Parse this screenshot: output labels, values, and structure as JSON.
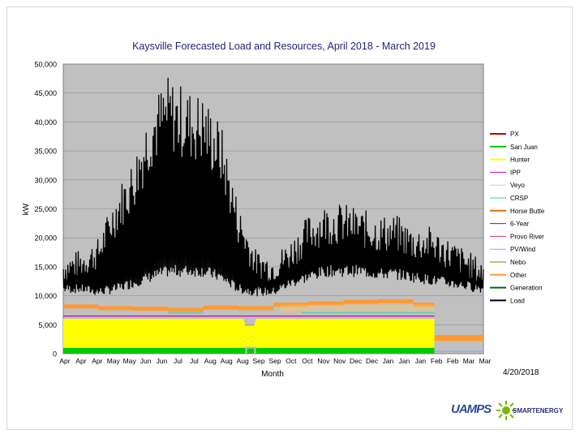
{
  "chart_data": {
    "type": "area",
    "title": "Kaysville Forecasted Load and Resources, April 2018 - March 2019",
    "ylabel": "kW",
    "xlabel": "Month",
    "ylim": [
      0,
      50000
    ],
    "yticks": [
      "0",
      "5,000",
      "10,000",
      "15,000",
      "20,000",
      "25,000",
      "30,000",
      "35,000",
      "40,000",
      "45,000",
      "50,000"
    ],
    "xticks": [
      "Apr",
      "Apr",
      "Apr",
      "May",
      "May",
      "Jun",
      "Jun",
      "Jul",
      "Jul",
      "Aug",
      "Aug",
      "Aug",
      "Sep",
      "Sep",
      "Oct",
      "Oct",
      "Nov",
      "Nov",
      "Dec",
      "Dec",
      "Jan",
      "Jan",
      "Jan",
      "Feb",
      "Feb",
      "Mar",
      "Mar"
    ],
    "grid": true,
    "legend_position": "right",
    "series": [
      {
        "name": "PX",
        "color": "#c00000"
      },
      {
        "name": "San Juan",
        "color": "#00cc00"
      },
      {
        "name": "Hunter",
        "color": "#ffff00"
      },
      {
        "name": "IPP",
        "color": "#cc00cc"
      },
      {
        "name": "Veyo",
        "color": "#cccccc"
      },
      {
        "name": "CRSP",
        "color": "#33cccc"
      },
      {
        "name": "Horse Butte",
        "color": "#e07000"
      },
      {
        "name": "6-Year",
        "color": "#333399"
      },
      {
        "name": "Provo River",
        "color": "#cc3366"
      },
      {
        "name": "PV/Wind",
        "color": "#9999ff"
      },
      {
        "name": "Nebo",
        "color": "#808000"
      },
      {
        "name": "Other",
        "color": "#ff9933"
      },
      {
        "name": "Generation",
        "color": "#006600"
      },
      {
        "name": "Load",
        "color": "#000000"
      }
    ],
    "stack_x_months": [
      0,
      5.2,
      5.4,
      6.2,
      12
    ],
    "san_juan": [
      1000,
      1000,
      600,
      1000,
      1000
    ],
    "hunter_top": [
      6000,
      6000,
      4800,
      6000,
      6000
    ],
    "hunter_x_end": 10.6,
    "other_band_top_x": [
      0,
      1,
      2,
      3,
      4,
      5,
      6,
      7,
      8,
      9,
      10,
      11,
      12
    ],
    "other_band_top": [
      8500,
      8200,
      8100,
      7900,
      8300,
      8200,
      8800,
      9000,
      9300,
      9400,
      8800,
      3200,
      3200
    ],
    "load_envelope": {
      "months": [
        0,
        0.5,
        1,
        1.5,
        2,
        2.5,
        3,
        3.5,
        4,
        4.5,
        5,
        5.5,
        6,
        6.5,
        7,
        7.5,
        8,
        8.5,
        9,
        9.5,
        10,
        10.5,
        11,
        11.5,
        12
      ],
      "daily_max": [
        17000,
        18000,
        20000,
        28000,
        34000,
        44000,
        48000,
        46000,
        45000,
        40000,
        26000,
        18000,
        17000,
        20000,
        24000,
        26000,
        26000,
        25000,
        24000,
        24000,
        22000,
        22000,
        20000,
        18000,
        16000
      ],
      "daily_min": [
        11000,
        11000,
        10500,
        11000,
        12000,
        13000,
        14000,
        14000,
        14000,
        13000,
        11000,
        10500,
        10500,
        12000,
        13000,
        14000,
        14000,
        14000,
        13500,
        13500,
        13000,
        12500,
        12000,
        11500,
        11000
      ]
    }
  },
  "footer": {
    "date": "4/20/2018",
    "logo_uamps": "UAMPS",
    "logo_smartenergy": "SMARTENERGY"
  }
}
